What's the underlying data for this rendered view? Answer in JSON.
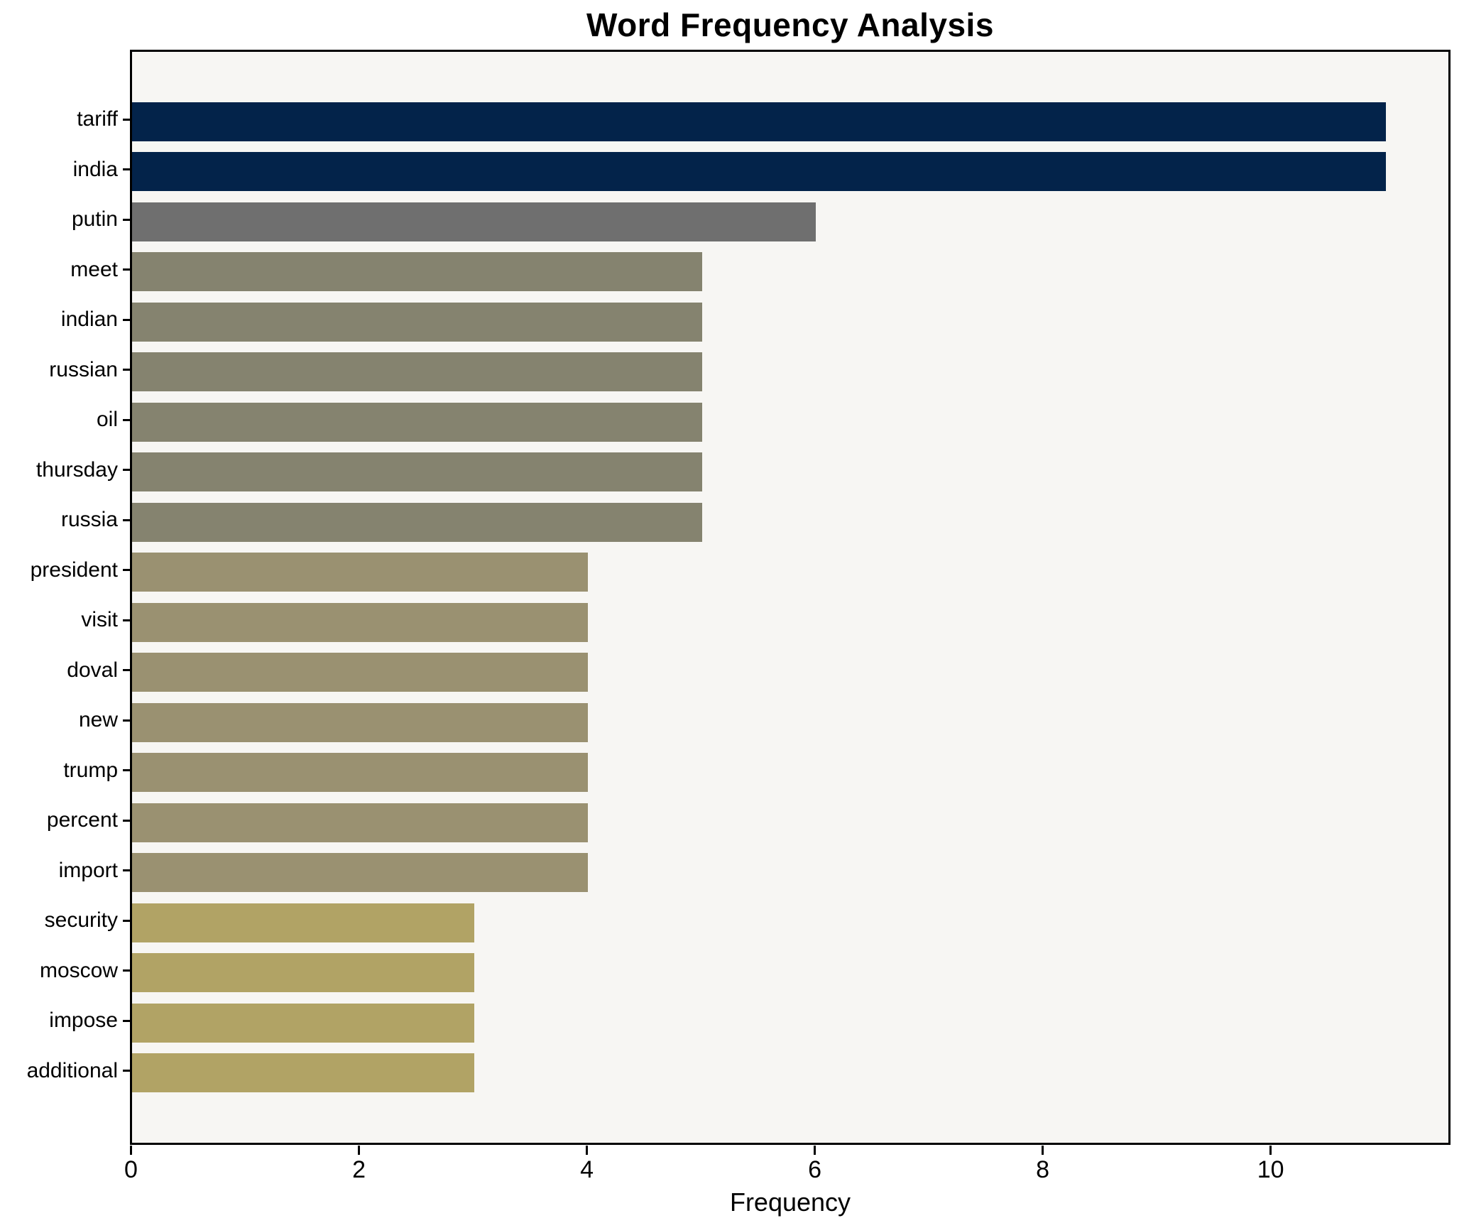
{
  "title": "Word Frequency Analysis",
  "chart_data": {
    "type": "bar",
    "orientation": "horizontal",
    "title": "Word Frequency Analysis",
    "xlabel": "Frequency",
    "ylabel": "",
    "categories": [
      "tariff",
      "india",
      "putin",
      "meet",
      "indian",
      "russian",
      "oil",
      "thursday",
      "russia",
      "president",
      "visit",
      "doval",
      "new",
      "trump",
      "percent",
      "import",
      "security",
      "moscow",
      "impose",
      "additional"
    ],
    "values": [
      11,
      11,
      6,
      5,
      5,
      5,
      5,
      5,
      5,
      4,
      4,
      4,
      4,
      4,
      4,
      4,
      3,
      3,
      3,
      3
    ],
    "bar_colors": [
      "#03234a",
      "#03234a",
      "#6f6f6f",
      "#85836f",
      "#85836f",
      "#85836f",
      "#85836f",
      "#85836f",
      "#85836f",
      "#9a9171",
      "#9a9171",
      "#9a9171",
      "#9a9171",
      "#9a9171",
      "#9a9171",
      "#9a9171",
      "#b1a365",
      "#b1a365",
      "#b1a365",
      "#b1a365"
    ],
    "x_ticks": [
      0,
      2,
      4,
      6,
      8,
      10
    ],
    "x_tick_labels": [
      "0",
      "2",
      "4",
      "6",
      "8",
      "10"
    ],
    "xlim": [
      0,
      11.55
    ],
    "grid": false,
    "legend_position": "none"
  },
  "colors": {
    "figure_bg": "#ffffff",
    "plot_bg": "#f7f6f3",
    "spine": "#000000",
    "text": "#000000"
  }
}
